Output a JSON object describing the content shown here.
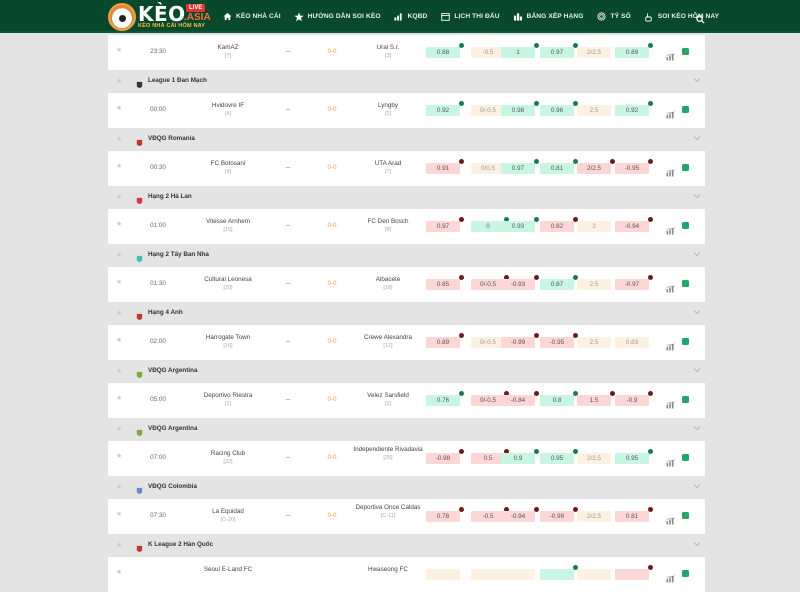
{
  "header": {
    "logo": {
      "brand": "KÈO",
      "live": "LIVE",
      "asia": ".ASIA",
      "tagline": "KÈO NHÀ CÁI HÔM NAY"
    },
    "nav": [
      {
        "label": "KÈO NHÀ CÁI",
        "icon": "home-icon"
      },
      {
        "label": "HƯỚNG DẪN SOI KÈO",
        "icon": "star-icon"
      },
      {
        "label": "KQBD",
        "icon": "bar-chart-icon"
      },
      {
        "label": "LỊCH THI ĐẤU",
        "icon": "calendar-icon"
      },
      {
        "label": "BẢNG XẾP HẠNG",
        "icon": "ranking-icon"
      },
      {
        "label": "TỶ SỐ",
        "icon": "target-icon"
      },
      {
        "label": "SOI KÈO HÔM NAY",
        "icon": "hand-icon"
      }
    ],
    "search_icon": "search-icon"
  },
  "colors": {
    "header_bg": "#08482b",
    "odd_up": "#c9f6e2",
    "odd_down": "#fdd6d6",
    "odd_neutral": "#fdf1e2",
    "score": "#f0a04a",
    "fav": "#27a36b"
  },
  "rows": [
    {
      "type": "match",
      "time": "23:30",
      "home": "KamAZ",
      "home_rank": "[7]",
      "vs": "–",
      "score": "0-0",
      "away": "Ural S.r.",
      "away_rank": "[3]",
      "odds": [
        {
          "v": "0.88",
          "c": "g",
          "a": "up"
        },
        {
          "v": "-0.5",
          "c": "n",
          "a": ""
        },
        {
          "v": "1",
          "c": "g",
          "a": "up"
        },
        {
          "v": "0.97",
          "c": "g",
          "a": "up"
        },
        {
          "v": "2/2.5",
          "c": "n",
          "a": ""
        },
        {
          "v": "0.89",
          "c": "g",
          "a": "up"
        }
      ]
    },
    {
      "type": "league",
      "name": "League 1 Đan Mạch",
      "icon": "flag-denmark-icon",
      "color": "#333"
    },
    {
      "type": "match",
      "time": "00:00",
      "home": "Hvidovre IF",
      "home_rank": "[4]",
      "vs": "–",
      "score": "0-0",
      "away": "Lyngby",
      "away_rank": "[2]",
      "odds": [
        {
          "v": "0.92",
          "c": "g",
          "a": "up"
        },
        {
          "v": "0/-0.5",
          "c": "n",
          "a": ""
        },
        {
          "v": "0.98",
          "c": "g",
          "a": "up"
        },
        {
          "v": "0.96",
          "c": "g",
          "a": "up"
        },
        {
          "v": "2.5",
          "c": "n",
          "a": ""
        },
        {
          "v": "0.92",
          "c": "g",
          "a": "up"
        }
      ]
    },
    {
      "type": "league",
      "name": "VĐQG Romania",
      "icon": "flag-romania-icon",
      "color": "#c0392b"
    },
    {
      "type": "match",
      "time": "00:30",
      "home": "FC Botosani",
      "home_rank": "[4]",
      "vs": "–",
      "score": "0-0",
      "away": "UTA Arad",
      "away_rank": "[7]",
      "odds": [
        {
          "v": "0.91",
          "c": "r",
          "a": "dn"
        },
        {
          "v": "0/0.5",
          "c": "n",
          "a": ""
        },
        {
          "v": "0.97",
          "c": "g",
          "a": "up"
        },
        {
          "v": "0.81",
          "c": "g",
          "a": "up"
        },
        {
          "v": "2/2.5",
          "c": "r",
          "a": "dn"
        },
        {
          "v": "-0.95",
          "c": "r",
          "a": "dn"
        }
      ]
    },
    {
      "type": "league",
      "name": "Hạng 2 Hà Lan",
      "icon": "flag-netherlands-icon",
      "color": "#d9363e"
    },
    {
      "type": "match",
      "time": "01:00",
      "home": "Vitesse Arnhem",
      "home_rank": "[15]",
      "vs": "–",
      "score": "0-0",
      "away": "FC Den Bosch",
      "away_rank": "[8]",
      "odds": [
        {
          "v": "0.97",
          "c": "r",
          "a": "dn"
        },
        {
          "v": "0",
          "c": "g",
          "a": "up"
        },
        {
          "v": "0.93",
          "c": "g",
          "a": "up"
        },
        {
          "v": "0.82",
          "c": "r",
          "a": "dn"
        },
        {
          "v": "3",
          "c": "n",
          "a": ""
        },
        {
          "v": "-0.94",
          "c": "r",
          "a": "dn"
        }
      ]
    },
    {
      "type": "league",
      "name": "Hạng 2 Tây Ban Nha",
      "icon": "flag-spain-icon",
      "color": "#3fbfb0"
    },
    {
      "type": "match",
      "time": "01:30",
      "home": "Cultural Leonesa",
      "home_rank": "[20]",
      "vs": "–",
      "score": "0-0",
      "away": "Albacete",
      "away_rank": "[18]",
      "odds": [
        {
          "v": "0.85",
          "c": "r",
          "a": "dn"
        },
        {
          "v": "0/-0.5",
          "c": "r",
          "a": "dn"
        },
        {
          "v": "-0.93",
          "c": "r",
          "a": "dn"
        },
        {
          "v": "0.87",
          "c": "g",
          "a": "up"
        },
        {
          "v": "2.5",
          "c": "n",
          "a": ""
        },
        {
          "v": "-0.97",
          "c": "r",
          "a": "dn"
        }
      ]
    },
    {
      "type": "league",
      "name": "Hạng 4 Anh",
      "icon": "flag-england-icon",
      "color": "#c0392b"
    },
    {
      "type": "match",
      "time": "02:00",
      "home": "Harrogate Town",
      "home_rank": "[16]",
      "vs": "–",
      "score": "0-0",
      "away": "Crewe Alexandra",
      "away_rank": "[12]",
      "odds": [
        {
          "v": "0.89",
          "c": "r",
          "a": "dn"
        },
        {
          "v": "0/-0.5",
          "c": "n",
          "a": ""
        },
        {
          "v": "-0.99",
          "c": "r",
          "a": "dn"
        },
        {
          "v": "-0.95",
          "c": "r",
          "a": "dn"
        },
        {
          "v": "2.5",
          "c": "n",
          "a": ""
        },
        {
          "v": "0.83",
          "c": "n",
          "a": ""
        }
      ]
    },
    {
      "type": "league",
      "name": "VĐQG Argentina",
      "icon": "flag-argentina-icon",
      "color": "#7cab3a"
    },
    {
      "type": "match",
      "time": "05:00",
      "home": "Deportivo Riestra",
      "home_rank": "[1]",
      "vs": "–",
      "score": "0-0",
      "away": "Velez Sarsfield",
      "away_rank": "[2]",
      "odds": [
        {
          "v": "0.76",
          "c": "g",
          "a": "up"
        },
        {
          "v": "0/-0.5",
          "c": "r",
          "a": "dn"
        },
        {
          "v": "-0.84",
          "c": "r",
          "a": "dn"
        },
        {
          "v": "0.8",
          "c": "g",
          "a": "up"
        },
        {
          "v": "1.5",
          "c": "r",
          "a": "dn"
        },
        {
          "v": "-0.9",
          "c": "r",
          "a": "dn"
        }
      ]
    },
    {
      "type": "league",
      "name": "VĐQG Argentina",
      "icon": "flag-argentina-icon",
      "color": "#7cab3a"
    },
    {
      "type": "match",
      "time": "07:00",
      "home": "Racing Club",
      "home_rank": "[22]",
      "vs": "–",
      "score": "0-0",
      "away": "Independiente Rivadavia",
      "away_rank": "[25]",
      "odds": [
        {
          "v": "-0.98",
          "c": "r",
          "a": "dn"
        },
        {
          "v": "0.5",
          "c": "r",
          "a": "dn"
        },
        {
          "v": "0.9",
          "c": "g",
          "a": "up"
        },
        {
          "v": "0.95",
          "c": "g",
          "a": "up"
        },
        {
          "v": "2/2.5",
          "c": "n",
          "a": ""
        },
        {
          "v": "0.95",
          "c": "g",
          "a": "up"
        }
      ]
    },
    {
      "type": "league",
      "name": "VĐQG Colombia",
      "icon": "flag-colombia-icon",
      "color": "#6b8cc7"
    },
    {
      "type": "match",
      "time": "07:30",
      "home": "La Equidad",
      "home_rank": "[C-20]",
      "vs": "–",
      "score": "0-0",
      "away": "Deportiva Once Caldas",
      "away_rank": "[C-11]",
      "odds": [
        {
          "v": "0.78",
          "c": "r",
          "a": "dn"
        },
        {
          "v": "-0.5",
          "c": "r",
          "a": "dn"
        },
        {
          "v": "-0.94",
          "c": "r",
          "a": "dn"
        },
        {
          "v": "-0.99",
          "c": "r",
          "a": "dn"
        },
        {
          "v": "2/2.5",
          "c": "n",
          "a": ""
        },
        {
          "v": "0.81",
          "c": "r",
          "a": "dn"
        }
      ]
    },
    {
      "type": "league",
      "name": "K League 2 Hàn Quốc",
      "icon": "flag-korea-icon",
      "color": "#c0392b"
    },
    {
      "type": "match",
      "time": "",
      "home": "Seoul E-Land FC",
      "home_rank": "",
      "vs": "",
      "score": "",
      "away": "Hwaseong FC",
      "away_rank": "",
      "odds": [
        {
          "v": "",
          "c": "n",
          "a": ""
        },
        {
          "v": "",
          "c": "n",
          "a": ""
        },
        {
          "v": "",
          "c": "n",
          "a": ""
        },
        {
          "v": "",
          "c": "g",
          "a": "up"
        },
        {
          "v": "",
          "c": "n",
          "a": ""
        },
        {
          "v": "",
          "c": "r",
          "a": "dn"
        }
      ]
    }
  ]
}
